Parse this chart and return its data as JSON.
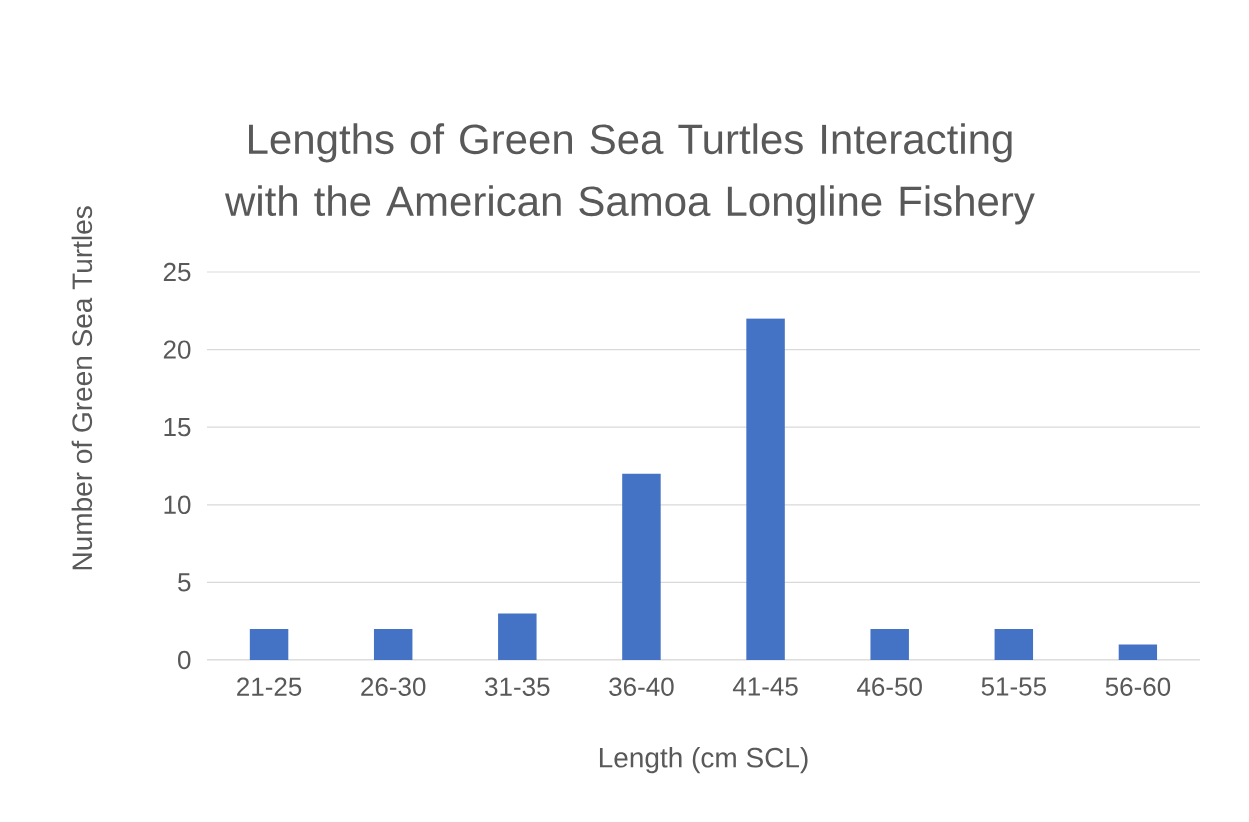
{
  "chart_data": {
    "type": "bar",
    "title": "Lengths of Green Sea Turtles Interacting with the American Samoa Longline Fishery",
    "xlabel": "Length (cm SCL)",
    "ylabel": "Number of Green Sea Turtles",
    "categories": [
      "21-25",
      "26-30",
      "31-35",
      "36-40",
      "41-45",
      "46-50",
      "51-55",
      "56-60"
    ],
    "values": [
      2,
      2,
      3,
      12,
      22,
      2,
      2,
      1
    ],
    "color": "#4472c4",
    "ylim": [
      0,
      25
    ],
    "yticks": [
      0,
      5,
      10,
      15,
      20,
      25
    ],
    "grid": "y"
  }
}
